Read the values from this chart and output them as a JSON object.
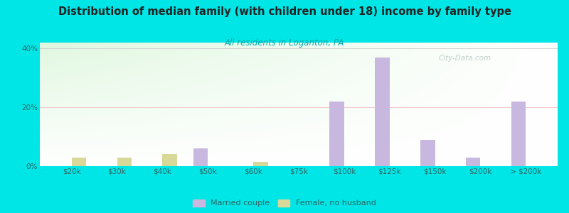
{
  "title": "Distribution of median family (with children under 18) income by family type",
  "subtitle": "All residents in Loganton, PA",
  "categories": [
    "$20k",
    "$30k",
    "$40k",
    "$50k",
    "$60k",
    "$75k",
    "$100k",
    "$125k",
    "$150k",
    "$200k",
    "> $200k"
  ],
  "married_couple": [
    0,
    0,
    0,
    6,
    0,
    0,
    22,
    37,
    9,
    3,
    22
  ],
  "female_no_husband": [
    3,
    3,
    4,
    0,
    1.5,
    0,
    0,
    0,
    0,
    0,
    0
  ],
  "married_color": "#c8b8e0",
  "female_color": "#d8d898",
  "title_color": "#222222",
  "subtitle_color": "#00aaaa",
  "background_outer": "#00e5e5",
  "ylim": [
    0,
    42
  ],
  "yticks": [
    0,
    20,
    40
  ],
  "ytick_labels": [
    "0%",
    "20%",
    "40%"
  ],
  "bar_width": 0.32,
  "legend_married": "Married couple",
  "legend_female": "Female, no husband",
  "watermark": "City-Data.com",
  "gridline_color": "#e8c8c8",
  "tick_label_color": "#336666"
}
